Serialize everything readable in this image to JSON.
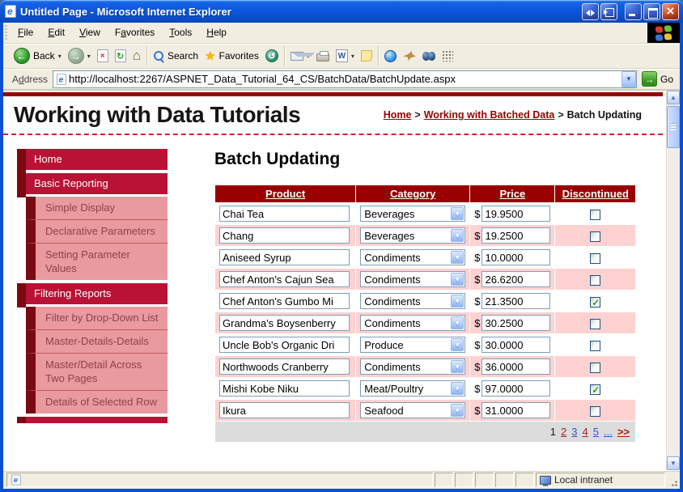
{
  "window": {
    "title": "Untitled Page - Microsoft Internet Explorer"
  },
  "menu": {
    "items": [
      {
        "label": "File",
        "accel": 0
      },
      {
        "label": "Edit",
        "accel": 0
      },
      {
        "label": "View",
        "accel": 0
      },
      {
        "label": "Favorites",
        "accel": 1
      },
      {
        "label": "Tools",
        "accel": 0
      },
      {
        "label": "Help",
        "accel": 0
      }
    ]
  },
  "toolbar": {
    "back_label": "Back",
    "search_label": "Search",
    "favorites_label": "Favorites",
    "icons": [
      "back",
      "forward",
      "stop",
      "refresh",
      "home",
      "search",
      "favorites",
      "history",
      "mail",
      "print",
      "edit-word",
      "discuss",
      "messenger",
      "research",
      "find",
      "tiles"
    ]
  },
  "address_bar": {
    "label": "Address",
    "url": "http://localhost:2267/ASPNET_Data_Tutorial_64_CS/BatchData/BatchUpdate.aspx",
    "go_label": "Go"
  },
  "header": {
    "site_title": "Working with Data Tutorials",
    "breadcrumb": [
      {
        "label": "Home",
        "link": true
      },
      {
        "label": "Working with Batched Data",
        "link": true
      },
      {
        "label": "Batch Updating",
        "link": false
      }
    ]
  },
  "sidebar": {
    "items": [
      {
        "type": "section",
        "label": "Home"
      },
      {
        "type": "section",
        "label": "Basic Reporting"
      },
      {
        "type": "sub",
        "label": "Simple Display"
      },
      {
        "type": "sub",
        "label": "Declarative Parameters"
      },
      {
        "type": "sub",
        "label": "Setting Parameter Values"
      },
      {
        "type": "section",
        "label": "Filtering Reports"
      },
      {
        "type": "sub",
        "label": "Filter by Drop-Down List"
      },
      {
        "type": "sub",
        "label": "Master-Details-Details"
      },
      {
        "type": "sub",
        "label": "Master/Detail Across Two Pages"
      },
      {
        "type": "sub",
        "label": "Details of Selected Row"
      },
      {
        "type": "stub",
        "label": ""
      }
    ]
  },
  "main": {
    "page_title": "Batch Updating",
    "table": {
      "columns": [
        "Product",
        "Category",
        "Price",
        "Discontinued"
      ],
      "currency_symbol": "$",
      "rows": [
        {
          "product": "Chai Tea",
          "category": "Beverages",
          "price": "19.9500",
          "discontinued": false
        },
        {
          "product": "Chang",
          "category": "Beverages",
          "price": "19.2500",
          "discontinued": false
        },
        {
          "product": "Aniseed Syrup",
          "category": "Condiments",
          "price": "10.0000",
          "discontinued": false
        },
        {
          "product": "Chef Anton's Cajun Sea",
          "category": "Condiments",
          "price": "26.6200",
          "discontinued": false
        },
        {
          "product": "Chef Anton's Gumbo Mi",
          "category": "Condiments",
          "price": "21.3500",
          "discontinued": true
        },
        {
          "product": "Grandma's Boysenberry",
          "category": "Condiments",
          "price": "30.2500",
          "discontinued": false
        },
        {
          "product": "Uncle Bob's Organic Dri",
          "category": "Produce",
          "price": "30.0000",
          "discontinued": false
        },
        {
          "product": "Northwoods Cranberry",
          "category": "Condiments",
          "price": "36.0000",
          "discontinued": false
        },
        {
          "product": "Mishi Kobe Niku",
          "category": "Meat/Poultry",
          "price": "97.0000",
          "discontinued": true
        },
        {
          "product": "Ikura",
          "category": "Seafood",
          "price": "31.0000",
          "discontinued": false
        }
      ],
      "pager": {
        "items": [
          {
            "label": "1",
            "type": "current"
          },
          {
            "label": "2",
            "type": "red"
          },
          {
            "label": "3",
            "type": "blue"
          },
          {
            "label": "4",
            "type": "red"
          },
          {
            "label": "5",
            "type": "blue"
          },
          {
            "label": "...",
            "type": "blue"
          },
          {
            "label": ">>",
            "type": "next"
          }
        ]
      }
    }
  },
  "status_bar": {
    "zone_label": "Local intranet"
  },
  "colors": {
    "maroon_header": "#990000",
    "crimson_nav": "#b91235",
    "nav_shadow": "#7a0a12",
    "nav_sub_pink": "#e89a9e",
    "row_alt_pink": "#ffd2d2",
    "titlebar_blue": "#0d57dd"
  }
}
